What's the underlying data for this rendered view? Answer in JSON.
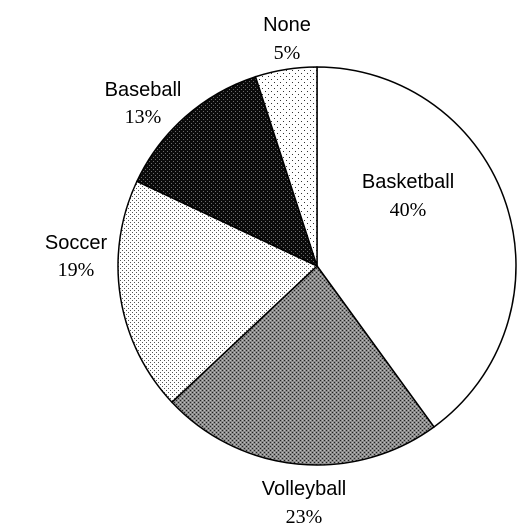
{
  "chart_data": {
    "type": "pie",
    "slices": [
      {
        "name": "Basketball",
        "value": 40,
        "label": "40%",
        "fill": "white"
      },
      {
        "name": "Volleyball",
        "value": 23,
        "label": "23%",
        "fill": "crosshatch"
      },
      {
        "name": "Soccer",
        "value": 19,
        "label": "19%",
        "fill": "light-dots"
      },
      {
        "name": "Baseball",
        "value": 13,
        "label": "13%",
        "fill": "black"
      },
      {
        "name": "None",
        "value": 5,
        "label": "5%",
        "fill": "sparse-dots"
      }
    ],
    "start": "12 o'clock",
    "direction": "clockwise",
    "legend": "none"
  }
}
